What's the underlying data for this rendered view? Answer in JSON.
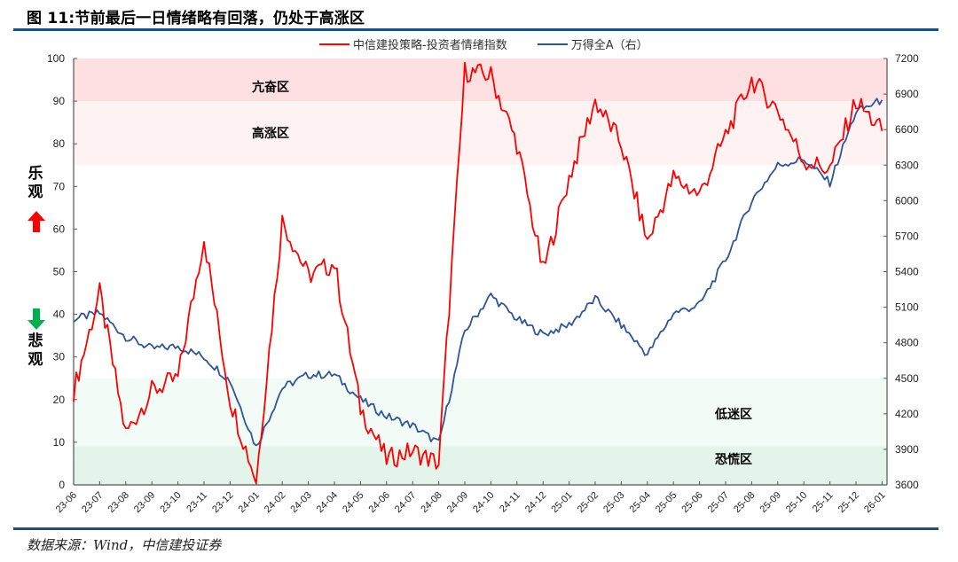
{
  "title": "图 11:节前最后一日情绪略有回落，仍处于高涨区",
  "source": "数据来源：Wind，中信建投证券",
  "side_labels": {
    "optimistic": "乐观",
    "pessimistic": "悲观",
    "up_icon": "up-arrow-red",
    "down_icon": "down-arrow-green"
  },
  "zones": [
    {
      "name": "亢奋区",
      "from": 90,
      "to": 100,
      "color": "#ffe0e2"
    },
    {
      "name": "高涨区",
      "from": 75,
      "to": 90,
      "color": "#fff2f3"
    },
    {
      "name": "低迷区",
      "from": 9,
      "to": 25,
      "color": "#f3fbf7"
    },
    {
      "name": "恐慌区",
      "from": 0,
      "to": 9,
      "color": "#e3f4ea"
    }
  ],
  "colors": {
    "sentiment": "#ff0000",
    "index": "#2f5597",
    "rule": "#1f4e79"
  },
  "chart_data": {
    "type": "line",
    "title": "图 11:节前最后一日情绪略有回落，仍处于高涨区",
    "legend_position": "top",
    "grid": false,
    "x": [
      "23-06",
      "23-07",
      "23-08",
      "23-09",
      "23-10",
      "23-11",
      "23-12",
      "24-01",
      "24-02",
      "24-03",
      "24-04",
      "24-05",
      "24-06",
      "24-07",
      "24-08",
      "24-09",
      "24-10",
      "24-11",
      "24-12",
      "25-01",
      "25-02",
      "25-03",
      "25-04",
      "25-05",
      "25-06",
      "25-07",
      "25-08",
      "25-09",
      "25-10",
      "25-11",
      "25-12",
      "26-01"
    ],
    "y_left": {
      "label": "",
      "ylim": [
        0,
        100
      ],
      "ticks": [
        0,
        10,
        20,
        30,
        40,
        50,
        60,
        70,
        80,
        90,
        100
      ]
    },
    "y_right": {
      "label": "万得全A（右）",
      "ylim": [
        3600,
        7200
      ],
      "ticks": [
        3600,
        3900,
        4200,
        4500,
        4800,
        5100,
        5400,
        5700,
        6000,
        6300,
        6600,
        6900,
        7200
      ]
    },
    "series": [
      {
        "name": "中信建投策略-投资者情绪指数",
        "axis": "left",
        "values": [
          22,
          45,
          12,
          22,
          25,
          58,
          20,
          1,
          62,
          49,
          52,
          18,
          6,
          8,
          5,
          97,
          96,
          80,
          50,
          72,
          90,
          80,
          57,
          72,
          68,
          82,
          95,
          88,
          76,
          74,
          90,
          83
        ]
      },
      {
        "name": "万得全A（右）",
        "axis": "right",
        "values": [
          5000,
          5050,
          4850,
          4750,
          4770,
          4680,
          4480,
          3920,
          4420,
          4530,
          4530,
          4320,
          4180,
          4100,
          3950,
          4900,
          5200,
          5000,
          4870,
          4950,
          5170,
          4950,
          4700,
          5050,
          5120,
          5500,
          6000,
          6300,
          6350,
          6150,
          6750,
          6850
        ]
      }
    ],
    "annotations": [
      "亢奋区",
      "高涨区",
      "低迷区",
      "恐慌区",
      "乐观",
      "悲观"
    ]
  }
}
